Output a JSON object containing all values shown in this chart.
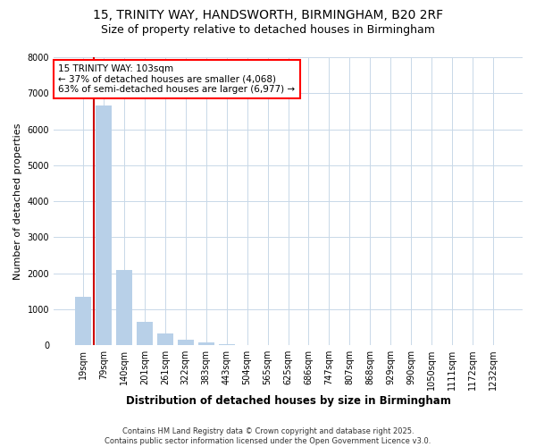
{
  "title_line1": "15, TRINITY WAY, HANDSWORTH, BIRMINGHAM, B20 2RF",
  "title_line2": "Size of property relative to detached houses in Birmingham",
  "xlabel": "Distribution of detached houses by size in Birmingham",
  "ylabel": "Number of detached properties",
  "annotation_line1": "15 TRINITY WAY: 103sqm",
  "annotation_line2": "← 37% of detached houses are smaller (4,068)",
  "annotation_line3": "63% of semi-detached houses are larger (6,977) →",
  "footnote1": "Contains HM Land Registry data © Crown copyright and database right 2025.",
  "footnote2": "Contains public sector information licensed under the Open Government Licence v3.0.",
  "categories": [
    "19sqm",
    "79sqm",
    "140sqm",
    "201sqm",
    "261sqm",
    "322sqm",
    "383sqm",
    "443sqm",
    "504sqm",
    "565sqm",
    "625sqm",
    "686sqm",
    "747sqm",
    "807sqm",
    "868sqm",
    "929sqm",
    "990sqm",
    "1050sqm",
    "1111sqm",
    "1172sqm",
    "1232sqm"
  ],
  "values": [
    1350,
    6650,
    2100,
    650,
    320,
    150,
    80,
    30,
    10,
    5,
    2,
    1,
    1,
    0,
    0,
    0,
    0,
    0,
    0,
    0,
    0
  ],
  "bar_color": "#b8d0e8",
  "line_color": "#cc0000",
  "red_line_x": 0.5,
  "ylim": [
    0,
    8000
  ],
  "yticks": [
    0,
    1000,
    2000,
    3000,
    4000,
    5000,
    6000,
    7000,
    8000
  ],
  "background_color": "#ffffff",
  "grid_color": "#c8d8e8",
  "title1_fontsize": 10,
  "title2_fontsize": 9,
  "ylabel_fontsize": 8,
  "xlabel_fontsize": 8.5,
  "tick_fontsize": 7,
  "annot_fontsize": 7.5,
  "footnote_fontsize": 6
}
